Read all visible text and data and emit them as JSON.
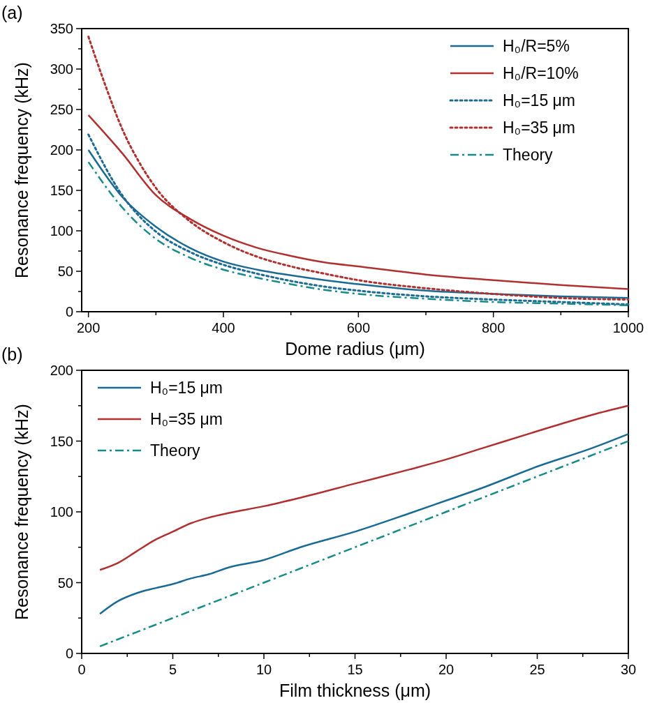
{
  "chart_data": [
    {
      "type": "line",
      "annotations": [
        "(a)"
      ],
      "xlabel": "Dome radius (μm)",
      "ylabel": "Resonance frequency (kHz)",
      "xlim": [
        190,
        1000
      ],
      "xticks": [
        200,
        {
          "value": 300,
          "label": null
        },
        400,
        {
          "value": 500,
          "label": null
        },
        600,
        {
          "value": 700,
          "label": null
        },
        800,
        {
          "value": 900,
          "label": null
        },
        1000
      ],
      "ylim": [
        0,
        350
      ],
      "yticks": [
        0,
        {
          "value": 25,
          "label": null
        },
        50,
        {
          "value": 75,
          "label": null
        },
        100,
        {
          "value": 125,
          "label": null
        },
        150,
        {
          "value": 175,
          "label": null
        },
        200,
        {
          "value": 225,
          "label": null
        },
        250,
        {
          "value": 275,
          "label": null
        },
        300,
        {
          "value": 325,
          "label": null
        },
        350
      ],
      "legend": "top right",
      "series": [
        {
          "name": "H₀/R=5%",
          "color": "#1a6a94",
          "line_style": "solid",
          "x": [
            200,
            250,
            300,
            350,
            400,
            450,
            500,
            550,
            600,
            700,
            800,
            900,
            1000
          ],
          "values": [
            200,
            142,
            105,
            79,
            62,
            52,
            45,
            39,
            34,
            26,
            22,
            19,
            17
          ]
        },
        {
          "name": "H₀/R=10%",
          "color": "#b0302f",
          "line_style": "solid",
          "x": [
            200,
            250,
            300,
            350,
            400,
            450,
            500,
            550,
            600,
            700,
            800,
            900,
            1000
          ],
          "values": [
            243,
            196,
            144,
            115,
            94,
            79,
            69,
            61,
            56,
            46,
            39,
            33,
            28
          ]
        },
        {
          "name": "H₀=15 μm",
          "color": "#1a6a94",
          "line_style": "dotted",
          "x": [
            200,
            250,
            300,
            350,
            400,
            450,
            500,
            550,
            600,
            700,
            800,
            900,
            1000
          ],
          "values": [
            219,
            144,
            99,
            74,
            58,
            47,
            38,
            31,
            26,
            19,
            15,
            12,
            9
          ]
        },
        {
          "name": "H₀=35 μm",
          "color": "#b0302f",
          "line_style": "dotted",
          "x": [
            200,
            225,
            250,
            275,
            300,
            350,
            400,
            450,
            500,
            550,
            600,
            700,
            800,
            900,
            1000
          ],
          "values": [
            340,
            280,
            226,
            185,
            153,
            112,
            86,
            68,
            56,
            47,
            39,
            29,
            22,
            17,
            15
          ]
        },
        {
          "name": "Theory",
          "color": "#178a8a",
          "line_style": "dashdot",
          "x": [
            200,
            250,
            300,
            350,
            400,
            450,
            500,
            550,
            600,
            700,
            800,
            900,
            1000
          ],
          "values": [
            185,
            129,
            90,
            67,
            52,
            42,
            34,
            27,
            22,
            16,
            12,
            10,
            8
          ]
        }
      ]
    },
    {
      "type": "line",
      "annotations": [
        "(b)"
      ],
      "xlabel": "Film thickness (μm)",
      "ylabel": "Resonance frequency (kHz)",
      "xlim": [
        0,
        30
      ],
      "xticks": [
        0,
        {
          "value": 2.5,
          "label": null
        },
        5,
        {
          "value": 7.5,
          "label": null
        },
        10,
        {
          "value": 12.5,
          "label": null
        },
        15,
        {
          "value": 17.5,
          "label": null
        },
        20,
        {
          "value": 22.5,
          "label": null
        },
        25,
        {
          "value": 27.5,
          "label": null
        },
        30
      ],
      "ylim": [
        0,
        200
      ],
      "yticks": [
        0,
        {
          "value": 25,
          "label": null
        },
        50,
        {
          "value": 75,
          "label": null
        },
        100,
        {
          "value": 125,
          "label": null
        },
        150,
        {
          "value": 175,
          "label": null
        },
        200
      ],
      "legend": "top left",
      "series": [
        {
          "name": "H₀=15 μm",
          "color": "#1a6a94",
          "line_style": "solid",
          "x": [
            1,
            2,
            3,
            4,
            5,
            6,
            7,
            8,
            10,
            12,
            15,
            18,
            20,
            22,
            25,
            28,
            30
          ],
          "values": [
            28,
            37,
            42.5,
            46,
            49,
            53,
            56,
            60.5,
            66,
            75,
            86,
            99,
            108,
            117,
            132,
            145,
            155
          ]
        },
        {
          "name": "H₀=35 μm",
          "color": "#b0302f",
          "line_style": "solid",
          "x": [
            1,
            2,
            3,
            4,
            5,
            6,
            7,
            8,
            10,
            12,
            15,
            18,
            20,
            22,
            25,
            28,
            30
          ],
          "values": [
            59,
            64,
            72,
            80,
            86,
            92,
            96,
            99,
            104,
            110,
            120,
            130,
            137,
            145,
            157,
            168.5,
            175
          ]
        },
        {
          "name": "Theory",
          "color": "#178a8a",
          "line_style": "dashdot",
          "x": [
            1,
            10,
            20,
            30
          ],
          "values": [
            5,
            50,
            100,
            150
          ]
        }
      ]
    }
  ]
}
